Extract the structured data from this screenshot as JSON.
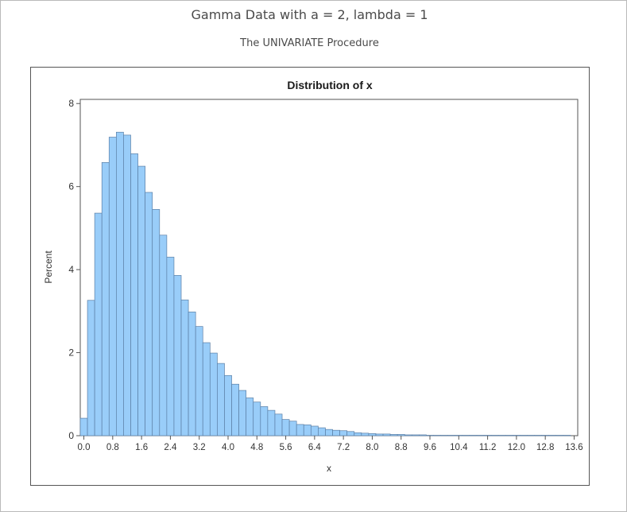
{
  "page": {
    "title": "Gamma Data with a = 2, lambda = 1",
    "subtitle": "The UNIVARIATE Procedure"
  },
  "chart_data": {
    "type": "bar",
    "title": "Distribution of x",
    "xlabel": "x",
    "ylabel": "Percent",
    "bin_width": 0.2,
    "first_bin_center": 0.0,
    "xlim": [
      -0.1,
      13.7
    ],
    "ylim": [
      0,
      8.1
    ],
    "x_ticks": [
      "0.0",
      "0.8",
      "1.6",
      "2.4",
      "3.2",
      "4.0",
      "4.8",
      "5.6",
      "6.4",
      "7.2",
      "8.0",
      "8.8",
      "9.6",
      "10.4",
      "11.2",
      "12.0",
      "12.8",
      "13.6"
    ],
    "y_ticks": [
      "0",
      "2",
      "4",
      "6",
      "8"
    ],
    "values": [
      0.42,
      3.26,
      5.36,
      6.58,
      7.19,
      7.31,
      7.24,
      6.79,
      6.49,
      5.86,
      5.45,
      4.83,
      4.3,
      3.86,
      3.27,
      2.98,
      2.63,
      2.24,
      1.99,
      1.74,
      1.45,
      1.24,
      1.09,
      0.91,
      0.81,
      0.7,
      0.61,
      0.52,
      0.39,
      0.35,
      0.27,
      0.26,
      0.23,
      0.19,
      0.15,
      0.13,
      0.12,
      0.1,
      0.07,
      0.06,
      0.05,
      0.04,
      0.04,
      0.03,
      0.03,
      0.02,
      0.02,
      0.02,
      0.01,
      0.01,
      0.01,
      0.01,
      0.01,
      0.01,
      0.01,
      0.01,
      0.01,
      0.01,
      0.01,
      0.01,
      0.01,
      0.01,
      0.01,
      0.01,
      0.01,
      0.01,
      0.01,
      0.01
    ],
    "bar_fill": "#99cdf9",
    "bar_stroke": "#5b7fa6",
    "grid": false
  }
}
